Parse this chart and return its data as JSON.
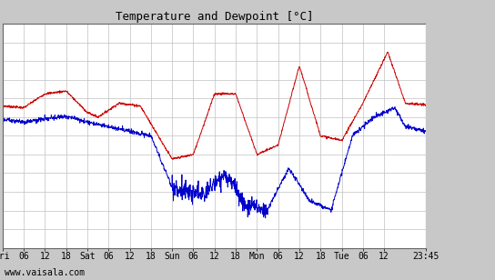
{
  "title": "Temperature and Dewpoint [°C]",
  "ylim": [
    -14,
    10
  ],
  "yticks": [
    -14,
    -12,
    -10,
    -8,
    -6,
    -4,
    -2,
    0,
    2,
    4,
    6,
    8,
    10
  ],
  "xlabel_ticks": [
    "Fri",
    "06",
    "12",
    "18",
    "Sat",
    "06",
    "12",
    "18",
    "Sun",
    "06",
    "12",
    "18",
    "Mon",
    "06",
    "12",
    "18",
    "Tue",
    "06",
    "12",
    "23:45"
  ],
  "tick_positions": [
    0,
    6,
    12,
    18,
    24,
    30,
    36,
    42,
    48,
    54,
    60,
    66,
    72,
    78,
    84,
    90,
    96,
    102,
    108,
    119.75
  ],
  "xlim": [
    0,
    119.75
  ],
  "temp_color": "#cc0000",
  "dewpoint_color": "#0000cc",
  "background_color": "#c8c8c8",
  "plot_bg_color": "#ffffff",
  "grid_color": "#c0c0c0",
  "watermark": "www.vaisala.com",
  "title_fontsize": 9,
  "tick_fontsize": 7,
  "watermark_fontsize": 7,
  "line_width": 0.7
}
